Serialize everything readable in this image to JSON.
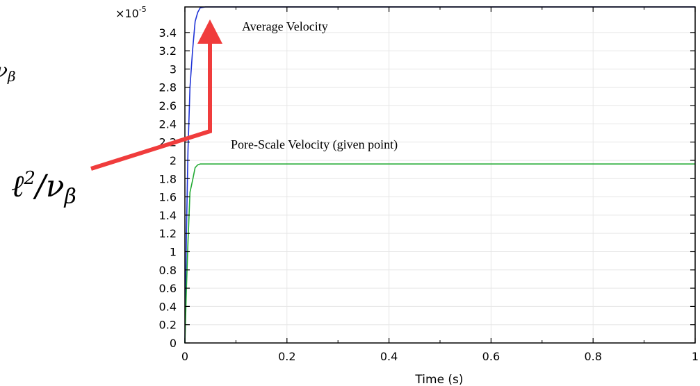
{
  "chart_data": {
    "type": "line",
    "xlabel": "Time (s)",
    "ylabel": "",
    "y_multiplier_label": "×10",
    "y_multiplier_exp": "-5",
    "xlim": [
      0,
      1
    ],
    "ylim": [
      0,
      3.68
    ],
    "x_ticks": [
      "0",
      "0.2",
      "0.4",
      "0.6",
      "0.8",
      "1"
    ],
    "y_ticks": [
      "0",
      "0.2",
      "0.4",
      "0.6",
      "0.8",
      "1",
      "1.2",
      "1.4",
      "1.6",
      "1.8",
      "2",
      "2.2",
      "2.4",
      "2.6",
      "2.8",
      "3",
      "3.2",
      "3.4"
    ],
    "grid": true,
    "series": [
      {
        "name": "Average Velocity",
        "color": "#1f33d6",
        "x": [
          0,
          0.003,
          0.006,
          0.01,
          0.015,
          0.02,
          0.025,
          0.03,
          0.04,
          0.05,
          0.1,
          1.0
        ],
        "y": [
          0,
          1.2,
          2.1,
          2.8,
          3.2,
          3.52,
          3.62,
          3.67,
          3.68,
          3.68,
          3.68,
          3.68
        ]
      },
      {
        "name": "Pore-Scale Velocity (given point)",
        "color": "#22aa33",
        "x": [
          0,
          0.003,
          0.006,
          0.01,
          0.015,
          0.02,
          0.025,
          0.03,
          0.04,
          0.05,
          0.1,
          1.0
        ],
        "y": [
          0,
          0.6,
          1.1,
          1.65,
          1.78,
          1.92,
          1.95,
          1.96,
          1.96,
          1.96,
          1.96,
          1.96
        ]
      }
    ],
    "annotations": [
      {
        "text": "Average Velocity"
      },
      {
        "text": "Pore-Scale Velocity (given point)"
      }
    ],
    "arrow_color": "#f03c3c"
  },
  "math": {
    "label_base": "ℓ",
    "label_exp": "2",
    "label_rest": "/ν",
    "label_sub": "β",
    "cut_fragment": "ν",
    "cut_sub": "β"
  }
}
